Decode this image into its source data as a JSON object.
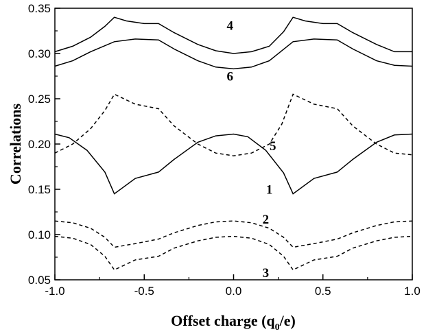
{
  "chart_data": {
    "type": "line",
    "xlabel": "Offset charge (q",
    "xlabel_sub": "0",
    "xlabel_end": "/e)",
    "ylabel": "Correlations",
    "xlim": [
      -1.0,
      1.0
    ],
    "ylim": [
      0.05,
      0.35
    ],
    "x_ticks": [
      -1.0,
      -0.5,
      0.0,
      0.5,
      1.0
    ],
    "x_tick_labels": [
      "-1.0",
      "-0.5",
      "0.0",
      "0.5",
      "1.0"
    ],
    "y_ticks": [
      0.05,
      0.1,
      0.15,
      0.2,
      0.25,
      0.3,
      0.35
    ],
    "y_tick_labels": [
      "0.05",
      "0.10",
      "0.15",
      "0.20",
      "0.25",
      "0.30",
      "0.35"
    ],
    "grid": false,
    "legend": "none",
    "series": [
      {
        "label": "4",
        "style": "solid",
        "label_at": [
          -0.02,
          0.326
        ],
        "points": [
          [
            -1.0,
            0.302
          ],
          [
            -0.9,
            0.308
          ],
          [
            -0.8,
            0.318
          ],
          [
            -0.72,
            0.33
          ],
          [
            -0.667,
            0.34
          ],
          [
            -0.6,
            0.336
          ],
          [
            -0.5,
            0.333
          ],
          [
            -0.42,
            0.333
          ],
          [
            -0.333,
            0.323
          ],
          [
            -0.2,
            0.31
          ],
          [
            -0.1,
            0.303
          ],
          [
            0.0,
            0.3
          ],
          [
            0.1,
            0.302
          ],
          [
            0.2,
            0.308
          ],
          [
            0.28,
            0.324
          ],
          [
            0.333,
            0.34
          ],
          [
            0.4,
            0.336
          ],
          [
            0.5,
            0.333
          ],
          [
            0.58,
            0.333
          ],
          [
            0.667,
            0.323
          ],
          [
            0.8,
            0.31
          ],
          [
            0.9,
            0.302
          ],
          [
            1.0,
            0.302
          ]
        ]
      },
      {
        "label": "6",
        "style": "solid",
        "label_at": [
          -0.02,
          0.27
        ],
        "points": [
          [
            -1.0,
            0.286
          ],
          [
            -0.9,
            0.292
          ],
          [
            -0.8,
            0.302
          ],
          [
            -0.667,
            0.313
          ],
          [
            -0.55,
            0.316
          ],
          [
            -0.42,
            0.315
          ],
          [
            -0.333,
            0.305
          ],
          [
            -0.2,
            0.292
          ],
          [
            -0.1,
            0.285
          ],
          [
            0.0,
            0.283
          ],
          [
            0.1,
            0.285
          ],
          [
            0.2,
            0.292
          ],
          [
            0.333,
            0.313
          ],
          [
            0.45,
            0.316
          ],
          [
            0.58,
            0.315
          ],
          [
            0.667,
            0.305
          ],
          [
            0.8,
            0.292
          ],
          [
            0.9,
            0.287
          ],
          [
            1.0,
            0.286
          ]
        ]
      },
      {
        "label": "5",
        "style": "dashed",
        "label_at": [
          0.22,
          0.193
        ],
        "points": [
          [
            -1.0,
            0.19
          ],
          [
            -0.9,
            0.2
          ],
          [
            -0.8,
            0.217
          ],
          [
            -0.72,
            0.237
          ],
          [
            -0.667,
            0.255
          ],
          [
            -0.55,
            0.244
          ],
          [
            -0.42,
            0.239
          ],
          [
            -0.333,
            0.22
          ],
          [
            -0.2,
            0.2
          ],
          [
            -0.1,
            0.19
          ],
          [
            0.0,
            0.187
          ],
          [
            0.1,
            0.19
          ],
          [
            0.2,
            0.2
          ],
          [
            0.27,
            0.222
          ],
          [
            0.333,
            0.255
          ],
          [
            0.45,
            0.244
          ],
          [
            0.58,
            0.239
          ],
          [
            0.667,
            0.22
          ],
          [
            0.8,
            0.2
          ],
          [
            0.9,
            0.19
          ],
          [
            1.0,
            0.188
          ]
        ]
      },
      {
        "label": "1",
        "style": "solid",
        "label_at": [
          0.2,
          0.145
        ],
        "points": [
          [
            -1.0,
            0.211
          ],
          [
            -0.92,
            0.207
          ],
          [
            -0.82,
            0.193
          ],
          [
            -0.72,
            0.169
          ],
          [
            -0.667,
            0.145
          ],
          [
            -0.55,
            0.162
          ],
          [
            -0.42,
            0.169
          ],
          [
            -0.333,
            0.183
          ],
          [
            -0.2,
            0.202
          ],
          [
            -0.1,
            0.209
          ],
          [
            0.0,
            0.211
          ],
          [
            0.08,
            0.208
          ],
          [
            0.18,
            0.193
          ],
          [
            0.28,
            0.168
          ],
          [
            0.333,
            0.145
          ],
          [
            0.45,
            0.162
          ],
          [
            0.58,
            0.169
          ],
          [
            0.667,
            0.183
          ],
          [
            0.8,
            0.202
          ],
          [
            0.9,
            0.21
          ],
          [
            1.0,
            0.211
          ]
        ]
      },
      {
        "label": "2",
        "style": "dashed",
        "label_at": [
          0.18,
          0.112
        ],
        "points": [
          [
            -1.0,
            0.115
          ],
          [
            -0.9,
            0.113
          ],
          [
            -0.8,
            0.107
          ],
          [
            -0.72,
            0.097
          ],
          [
            -0.667,
            0.086
          ],
          [
            -0.55,
            0.09
          ],
          [
            -0.42,
            0.095
          ],
          [
            -0.333,
            0.102
          ],
          [
            -0.2,
            0.11
          ],
          [
            -0.1,
            0.114
          ],
          [
            0.0,
            0.115
          ],
          [
            0.1,
            0.113
          ],
          [
            0.2,
            0.107
          ],
          [
            0.28,
            0.097
          ],
          [
            0.333,
            0.086
          ],
          [
            0.45,
            0.09
          ],
          [
            0.58,
            0.095
          ],
          [
            0.667,
            0.102
          ],
          [
            0.8,
            0.11
          ],
          [
            0.9,
            0.114
          ],
          [
            1.0,
            0.115
          ]
        ]
      },
      {
        "label": "3",
        "style": "dashed",
        "label_at": [
          0.18,
          0.053
        ],
        "points": [
          [
            -1.0,
            0.098
          ],
          [
            -0.9,
            0.096
          ],
          [
            -0.8,
            0.089
          ],
          [
            -0.72,
            0.076
          ],
          [
            -0.667,
            0.061
          ],
          [
            -0.55,
            0.072
          ],
          [
            -0.42,
            0.076
          ],
          [
            -0.333,
            0.085
          ],
          [
            -0.2,
            0.093
          ],
          [
            -0.1,
            0.097
          ],
          [
            0.0,
            0.098
          ],
          [
            0.1,
            0.096
          ],
          [
            0.2,
            0.089
          ],
          [
            0.28,
            0.076
          ],
          [
            0.333,
            0.061
          ],
          [
            0.45,
            0.072
          ],
          [
            0.58,
            0.076
          ],
          [
            0.667,
            0.085
          ],
          [
            0.8,
            0.093
          ],
          [
            0.9,
            0.097
          ],
          [
            1.0,
            0.098
          ]
        ]
      }
    ]
  }
}
